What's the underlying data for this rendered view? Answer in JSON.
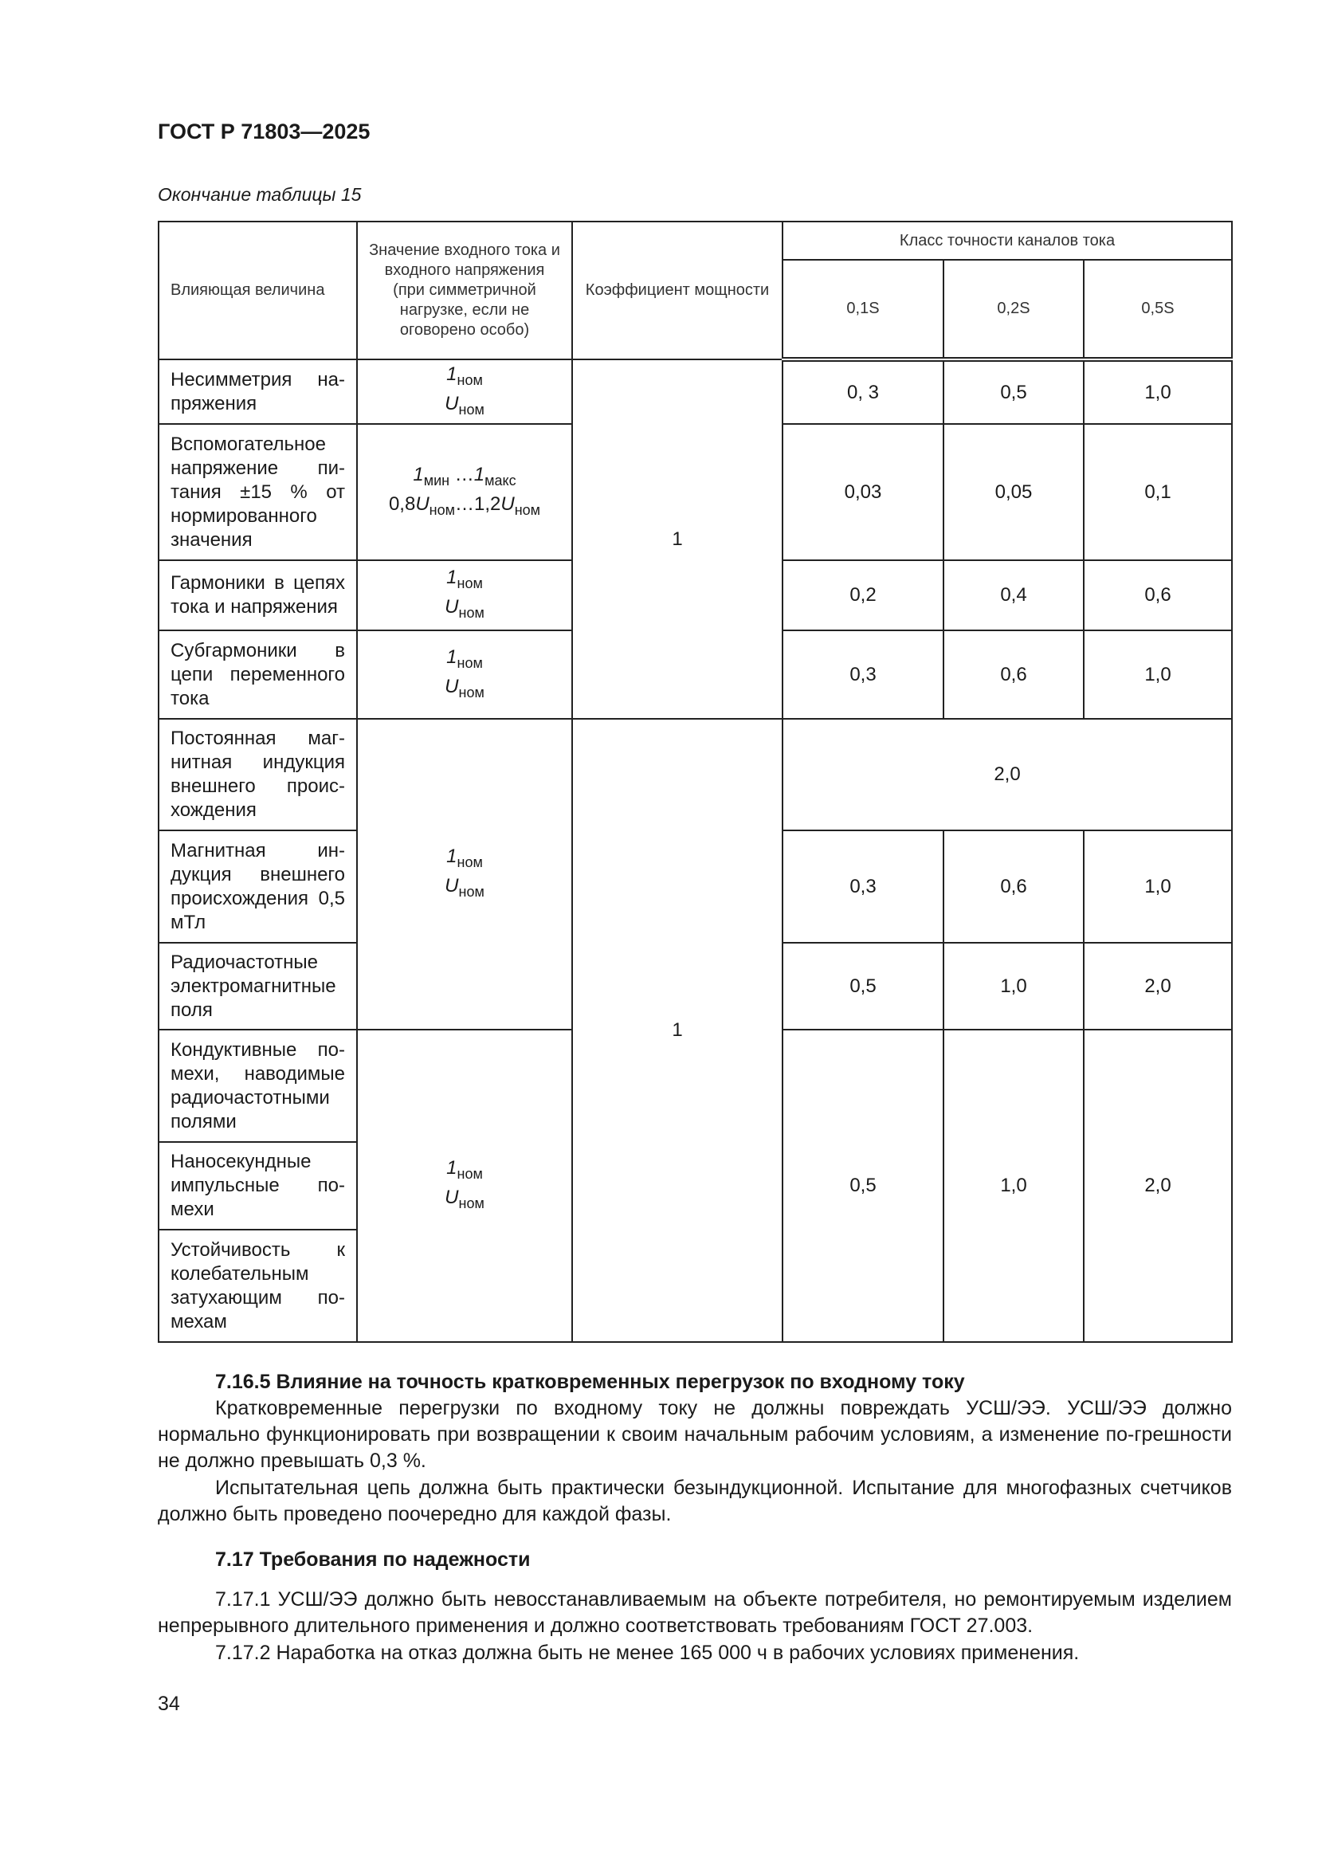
{
  "header": {
    "doc_id": "ГОСТ Р 71803—2025"
  },
  "table": {
    "caption": "Окончание таблицы 15",
    "headers": {
      "influence": "Влияющая величина",
      "value": "Значение входного тока и входного напряжения (при симметричной нагрузке, если не оговорено особо)",
      "power_factor": "Коэффициент мощности",
      "accuracy_group": "Класс точности каналов тока",
      "classes": [
        "0,1S",
        "0,2S",
        "0,5S"
      ]
    },
    "rows": [
      {
        "name": "Несимметрия на-пряжения",
        "values": [
          "0, 3",
          "0,5",
          "1,0"
        ]
      },
      {
        "name": "Вспомогательное напряжение пи-тания ±15 % от нормированного значения",
        "values": [
          "0,03",
          "0,05",
          "0,1"
        ]
      },
      {
        "name": "Гармоники в цепях тока и напряжения",
        "values": [
          "0,2",
          "0,4",
          "0,6"
        ]
      },
      {
        "name": "Субгармоники в цепи переменного тока",
        "values": [
          "0,3",
          "0,6",
          "1,0"
        ]
      },
      {
        "name": "Постоянная маг-нитная индукция внешнего проис-хождения",
        "merged_value": "2,0"
      },
      {
        "name": "Магнитная ин-дукция внешнего происхождения 0,5 мТл",
        "values": [
          "0,3",
          "0,6",
          "1,0"
        ]
      },
      {
        "name": "Радиочастотные электромагнитные поля",
        "values": [
          "0,5",
          "1,0",
          "2,0"
        ]
      },
      {
        "name": "Кондуктивные по-мехи, наводимые радиочастотными полями"
      },
      {
        "name": "Наносекундные импульсные по-мехи"
      },
      {
        "name": "Устойчивость к колебательным затухающим по-мехам"
      }
    ],
    "group_values": [
      "0,5",
      "1,0",
      "2,0"
    ],
    "current": {
      "sym": "1",
      "nom": "ном",
      "min": "мин",
      "max": "макс"
    },
    "voltage": {
      "sym": "U",
      "nom": "ном",
      "low": "0,8",
      "high": "…1,2",
      "dots": " …"
    },
    "power_factor_values": [
      "1",
      "1"
    ]
  },
  "sections": {
    "s7165_title": "7.16.5 Влияние на точность кратковременных перегрузок по входному току",
    "s7165_p1": "Кратковременные перегрузки по входному току не должны повреждать УСШ/ЭЭ. УСШ/ЭЭ должно нормально функционировать при возвращении к своим начальным рабочим условиям, а изменение по-грешности не должно превышать 0,3 %.",
    "s7165_p2": "Испытательная цепь должна быть практически безындукционной. Испытание для многофазных счетчиков должно быть проведено поочередно для каждой фазы.",
    "s717_title": "7.17 Требования по надежности",
    "s7171": "7.17.1 УСШ/ЭЭ должно быть невосстанавливаемым на объекте потребителя, но ремонтируемым изделием непрерывного длительного применения и должно соответствовать требованиям ГОСТ 27.003.",
    "s7172": "7.17.2 Наработка на отказ должна быть не менее 165 000 ч в рабочих условиях применения."
  },
  "page_number": "34"
}
